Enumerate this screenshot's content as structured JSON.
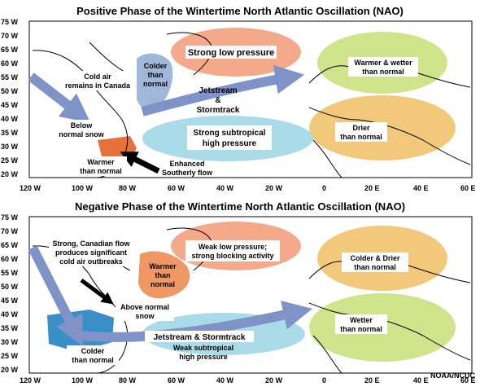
{
  "credit": "NOAA/NCDC",
  "lat_labels": [
    "75 W",
    "70 W",
    "65 W",
    "60 W",
    "55 W",
    "50 W",
    "45 W",
    "40 W",
    "35 W",
    "30 W",
    "25 W",
    "20 W"
  ],
  "lon_labels": [
    "120 W",
    "100 W",
    "80 W",
    "60 W",
    "40 W",
    "20 W",
    "0",
    "20 E",
    "40 E",
    "60 E"
  ],
  "positive": {
    "title": "Positive Phase of the Wintertime North Atlantic Oscillation (NAO)",
    "low": "Strong low pressure",
    "high_1": "Strong subtropical",
    "high_2": "high pressure",
    "jet_1": "Jetstream",
    "jet_2": "&",
    "jet_3": "Stormtrack",
    "europe_n_1": "Warmer & wetter",
    "europe_n_2": "than normal",
    "europe_s_1": "Drier",
    "europe_s_2": "than normal",
    "canada_1": "Cold air",
    "canada_2": "remains in Canada",
    "greenland_1": "Colder",
    "greenland_2": "than",
    "greenland_3": "normal",
    "snow_1": "Below",
    "snow_2": "normal snow",
    "se_us_1": "Warmer",
    "se_us_2": "than normal",
    "southerly_1": "Enhanced",
    "southerly_2": "Southerly flow"
  },
  "negative": {
    "title": "Negative Phase of the Wintertime North Atlantic Oscillation (NAO)",
    "low_1": "Weak low pressure;",
    "low_2": "strong blocking activity",
    "high_1": "Weak subtropical",
    "high_2": "high pressure",
    "jet": "Jetstream & Stormtrack",
    "europe_n_1": "Colder & Drier",
    "europe_n_2": "than normal",
    "europe_s_1": "Wetter",
    "europe_s_2": "than normal",
    "canada_1": "Strong, Canadian flow",
    "canada_2": "produces significant",
    "canada_3": "cold air outbreaks",
    "greenland_1": "Warmer",
    "greenland_2": "than",
    "greenland_3": "normal",
    "snow_1": "Above normal",
    "snow_2": "snow",
    "us_1": "Colder",
    "us_2": "than normal"
  },
  "colors": {
    "low": "#f4a98a",
    "high": "#a9dbe8",
    "europe_north_pos": "#cfe48b",
    "europe_south_pos": "#f2c97a",
    "europe_north_neg": "#f2c97a",
    "europe_south_neg": "#cfe48b",
    "greenland_pos": "#9fb8d9",
    "greenland_neg": "#ef9866",
    "se_us_warm": "#e8703a",
    "us_cold": "#3a8fc8",
    "arrow": "#7f93c9"
  }
}
